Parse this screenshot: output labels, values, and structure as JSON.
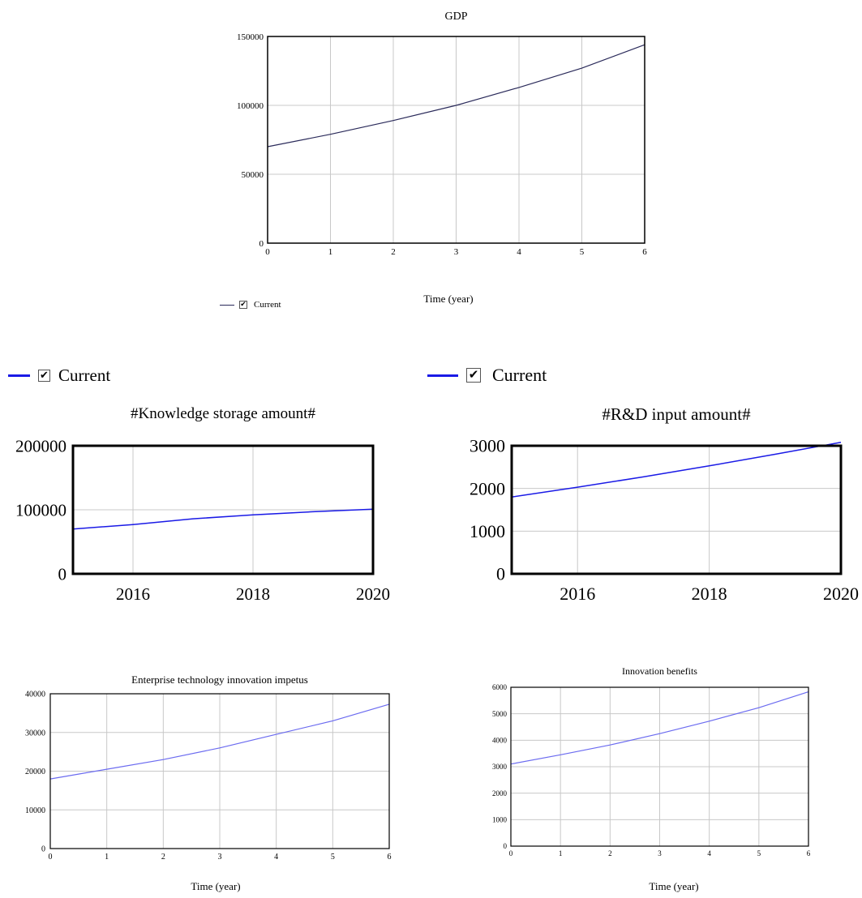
{
  "legend_label": "Current",
  "colors": {
    "series_gdp": "#2a2a5a",
    "series_blue": "#1a1ae6",
    "series_light": "#6b6bf0"
  },
  "chart_data": [
    {
      "id": "gdp",
      "type": "line",
      "title": "GDP",
      "xlabel": "Time (year)",
      "ylabel": "",
      "xlim": [
        0,
        6
      ],
      "ylim": [
        0,
        150000
      ],
      "xticks": [
        "0",
        "1",
        "2",
        "3",
        "4",
        "5",
        "6"
      ],
      "yticks": [
        "0",
        "50000",
        "100000",
        "150000"
      ],
      "grid": true,
      "legend": "bottom-left",
      "series": [
        {
          "name": "Current",
          "x": [
            0,
            1,
            2,
            3,
            4,
            5,
            6
          ],
          "values": [
            70000,
            79000,
            89000,
            100000,
            113000,
            127000,
            144000
          ]
        }
      ]
    },
    {
      "id": "knowledge",
      "type": "line",
      "title": "#Knowledge storage amount#",
      "xlabel": "",
      "ylabel": "",
      "xlim": [
        2015,
        2020
      ],
      "ylim": [
        0,
        200000
      ],
      "xticks": [
        "2016",
        "2018",
        "2020"
      ],
      "yticks": [
        "0",
        "100000",
        "200000"
      ],
      "grid": true,
      "legend": "top-left",
      "series": [
        {
          "name": "Current",
          "x": [
            2015,
            2016,
            2017,
            2018,
            2019,
            2020
          ],
          "values": [
            70000,
            77000,
            86000,
            92000,
            97000,
            101000
          ]
        }
      ]
    },
    {
      "id": "rd",
      "type": "line",
      "title": "#R&D input amount#",
      "xlabel": "",
      "ylabel": "",
      "xlim": [
        2015,
        2020
      ],
      "ylim": [
        0,
        3000
      ],
      "xticks": [
        "2016",
        "2018",
        "2020"
      ],
      "yticks": [
        "0",
        "1000",
        "2000",
        "3000"
      ],
      "grid": true,
      "legend": "top-left",
      "series": [
        {
          "name": "Current",
          "x": [
            2015,
            2016,
            2017,
            2018,
            2019,
            2020
          ],
          "values": [
            1800,
            2030,
            2270,
            2530,
            2800,
            3080
          ]
        }
      ]
    },
    {
      "id": "impetus",
      "type": "line",
      "title": "Enterprise technology innovation impetus",
      "xlabel": "Time (year)",
      "ylabel": "",
      "xlim": [
        0,
        6
      ],
      "ylim": [
        0,
        40000
      ],
      "xticks": [
        "0",
        "1",
        "2",
        "3",
        "4",
        "5",
        "6"
      ],
      "yticks": [
        "0",
        "10000",
        "20000",
        "30000",
        "40000"
      ],
      "grid": true,
      "legend": "none",
      "series": [
        {
          "name": "Current",
          "x": [
            0,
            1,
            2,
            3,
            4,
            5,
            6
          ],
          "values": [
            18000,
            20500,
            23000,
            26000,
            29500,
            33000,
            37300
          ]
        }
      ]
    },
    {
      "id": "benefits",
      "type": "line",
      "title": "Innovation benefits",
      "xlabel": "Time (year)",
      "ylabel": "",
      "xlim": [
        0,
        6
      ],
      "ylim": [
        0,
        6000
      ],
      "xticks": [
        "0",
        "1",
        "2",
        "3",
        "4",
        "5",
        "6"
      ],
      "yticks": [
        "0",
        "1000",
        "2000",
        "3000",
        "4000",
        "5000",
        "6000"
      ],
      "grid": true,
      "legend": "none",
      "series": [
        {
          "name": "Current",
          "x": [
            0,
            1,
            2,
            3,
            4,
            5,
            6
          ],
          "values": [
            3100,
            3450,
            3820,
            4250,
            4720,
            5230,
            5830
          ]
        }
      ]
    }
  ]
}
